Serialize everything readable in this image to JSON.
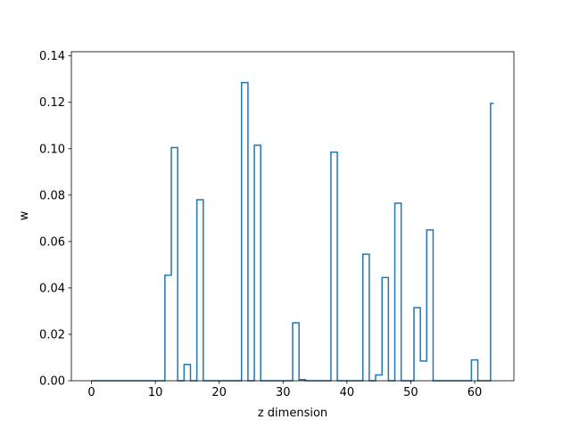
{
  "chart_data": {
    "type": "line",
    "drawstyle": "steps-mid",
    "title": "",
    "xlabel": "z dimension",
    "ylabel": "w",
    "xlim": [
      -3.15,
      66.15
    ],
    "ylim": [
      0,
      0.1418
    ],
    "xticks": [
      0,
      10,
      20,
      30,
      40,
      50,
      60
    ],
    "yticks": [
      0.0,
      0.02,
      0.04,
      0.06,
      0.08,
      0.1,
      0.12,
      0.14
    ],
    "ytick_labels": [
      "0.00",
      "0.02",
      "0.04",
      "0.06",
      "0.08",
      "0.10",
      "0.12",
      "0.14"
    ],
    "grid": false,
    "color": "#1f77b4",
    "x": [
      0,
      1,
      2,
      3,
      4,
      5,
      6,
      7,
      8,
      9,
      10,
      11,
      12,
      13,
      14,
      15,
      16,
      17,
      18,
      19,
      20,
      21,
      22,
      23,
      24,
      25,
      26,
      27,
      28,
      29,
      30,
      31,
      32,
      33,
      34,
      35,
      36,
      37,
      38,
      39,
      40,
      41,
      42,
      43,
      44,
      45,
      46,
      47,
      48,
      49,
      50,
      51,
      52,
      53,
      54,
      55,
      56,
      57,
      58,
      59,
      60,
      61,
      62,
      63
    ],
    "y": [
      0,
      0,
      0,
      0,
      0,
      0,
      0,
      0,
      0,
      0,
      0,
      0,
      0.0455,
      0.1005,
      0,
      0.007,
      0,
      0.078,
      0,
      0,
      0,
      0,
      0,
      0,
      0.1285,
      0,
      0.1015,
      0,
      0,
      0,
      0,
      0,
      0.025,
      0.0005,
      0,
      0,
      0,
      0,
      0.0985,
      0,
      0,
      0,
      0,
      0.0545,
      0,
      0.0025,
      0.0445,
      0,
      0.0765,
      0,
      0,
      0.0315,
      0.0085,
      0.065,
      0,
      0,
      0,
      0,
      0,
      0,
      0.009,
      0,
      0,
      0.1195
    ]
  }
}
